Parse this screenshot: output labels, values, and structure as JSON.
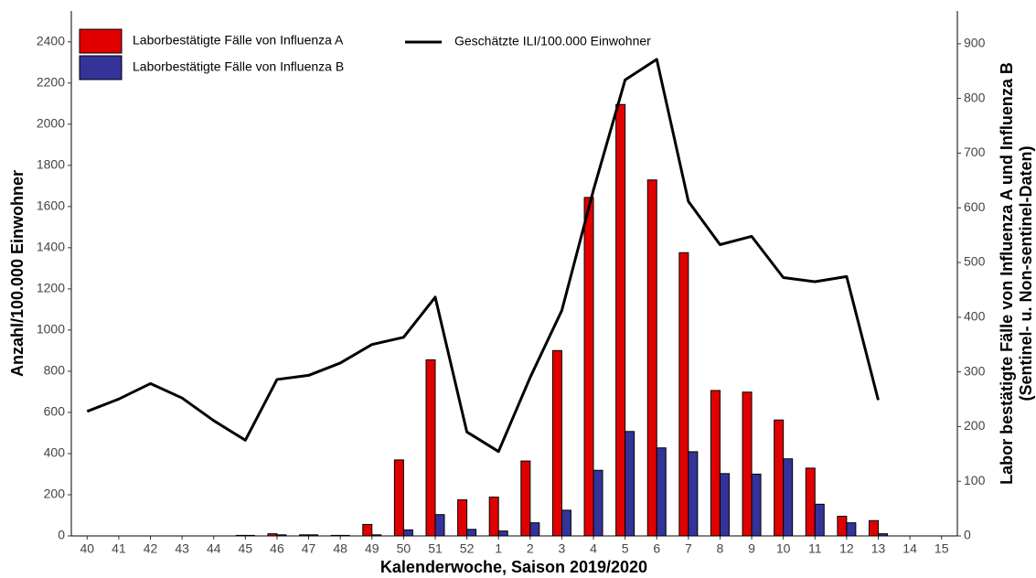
{
  "chart_data": {
    "type": "bar",
    "xlabel": "Kalenderwoche, Saison 2019/2020",
    "ylabel": "Anzahl/100.000 Einwohner",
    "y2label": [
      "Labor bestätigte Fälle von Influenza A und Influenza B",
      "(Sentinel- u. Non-sentinel-Daten)"
    ],
    "categories": [
      "40",
      "41",
      "42",
      "43",
      "44",
      "45",
      "46",
      "47",
      "48",
      "49",
      "50",
      "51",
      "52",
      "1",
      "2",
      "3",
      "4",
      "5",
      "6",
      "7",
      "8",
      "9",
      "10",
      "11",
      "12",
      "13",
      "14",
      "15"
    ],
    "series": [
      {
        "name": "Laborbestätigte Fälle von Influenza A",
        "type": "bar",
        "axis": "y2",
        "color": "#e00000",
        "values": [
          0,
          0,
          0,
          0,
          0,
          1,
          4,
          2,
          1,
          21,
          139,
          322,
          66,
          71,
          137,
          339,
          619,
          789,
          651,
          518,
          266,
          263,
          212,
          124,
          36,
          28,
          0,
          0
        ]
      },
      {
        "name": "Laborbestätigte Fälle von Influenza B",
        "type": "bar",
        "axis": "y2",
        "color": "#333399",
        "values": [
          0,
          0,
          0,
          0,
          0,
          1,
          2,
          2,
          1,
          2,
          11,
          39,
          12,
          9,
          24,
          47,
          120,
          191,
          161,
          154,
          114,
          113,
          141,
          58,
          24,
          4,
          0,
          0
        ]
      },
      {
        "name": "Geschätzte ILI/100.000 Einwohner",
        "type": "line",
        "axis": "y",
        "color": "#000000",
        "values": [
          605,
          665,
          740,
          670,
          560,
          465,
          760,
          780,
          840,
          930,
          965,
          1160,
          505,
          410,
          770,
          1095,
          1680,
          2215,
          2315,
          1625,
          1415,
          1455,
          1255,
          1235,
          1260,
          660,
          null,
          null
        ]
      }
    ],
    "ylim": [
      0,
      2550
    ],
    "yticks": [
      0,
      200,
      400,
      600,
      800,
      1000,
      1200,
      1400,
      1600,
      1800,
      2000,
      2200,
      2400
    ],
    "y2lim": [
      0,
      960
    ],
    "y2ticks": [
      0,
      100,
      200,
      300,
      400,
      500,
      600,
      700,
      800,
      900
    ]
  }
}
